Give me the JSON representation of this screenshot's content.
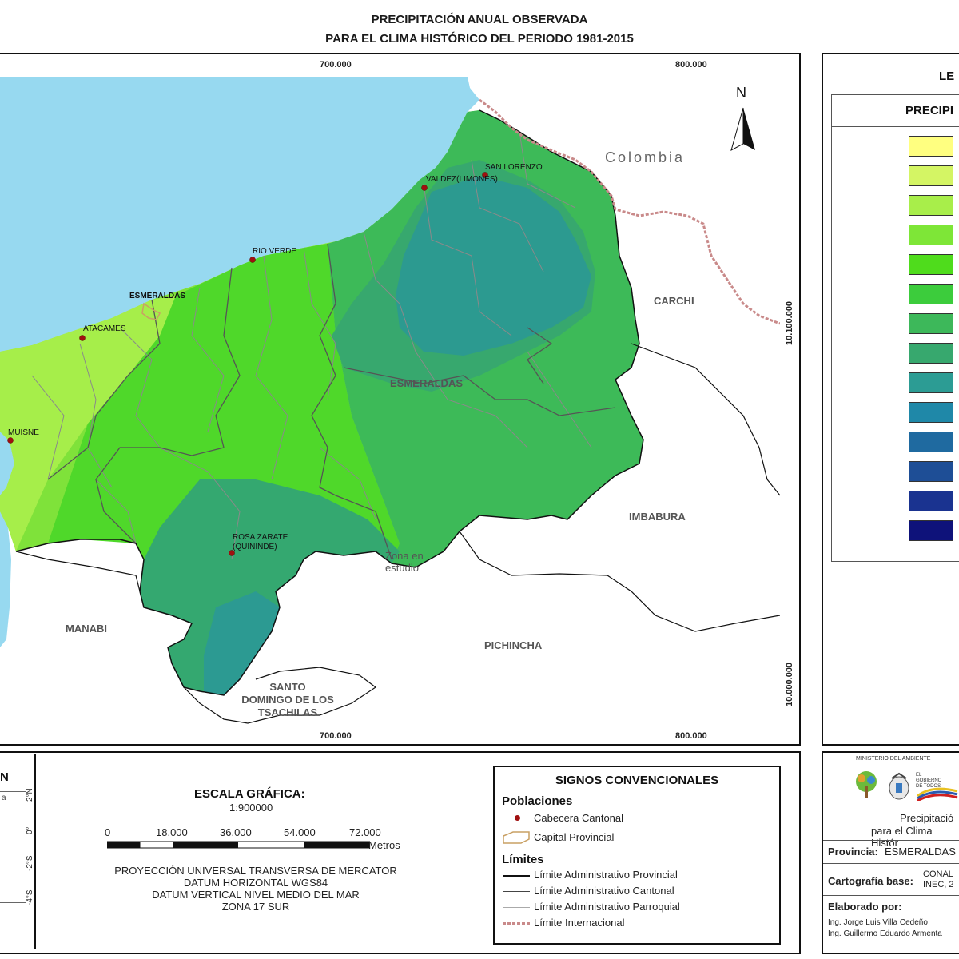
{
  "title": {
    "line1": "PRECIPITACIÓN ANUAL OBSERVADA",
    "line2": "PARA EL CLIMA HISTÓRICO DEL PERIODO 1981-2015"
  },
  "map": {
    "grid_x_labels": [
      "700.000",
      "800.000"
    ],
    "grid_y_labels": [
      "10.100.000",
      "10.000.000"
    ],
    "north_label": "N",
    "country_label": "Colombia",
    "province_labels": [
      "CARCHI",
      "IMBABURA",
      "PICHINCHA",
      "MANABI",
      "ESMERALDAS"
    ],
    "santo_domingo_label": [
      "SANTO",
      "DOMINGO DE LOS",
      "TSACHILAS"
    ],
    "zona_label": [
      "Zona en",
      "estudio"
    ],
    "capital_label": "ESMERALDAS",
    "towns": [
      "SAN LORENZO",
      "VALDEZ(LIMONES)",
      "RIO VERDE",
      "ATACAMES",
      "MUISNE",
      "ROSA ZARATE",
      "(QUININDE)"
    ],
    "colors": {
      "sea": "#97d9f0",
      "land_outside": "#ffffff",
      "boundary_parish": "#8a8a8a",
      "boundary_international": "#c98a8a"
    }
  },
  "legend": {
    "title": "LE",
    "subtitle": "PRECIPI",
    "swatch_colors": [
      "#ffff80",
      "#d4f564",
      "#a8ee4a",
      "#7ee637",
      "#4fdc1c",
      "#3ccc3c",
      "#3db85a",
      "#37a86e",
      "#2c9c94",
      "#1f88a8",
      "#1f6aa0",
      "#1e4e96",
      "#1a3390",
      "#0e127a"
    ]
  },
  "ubicacion": {
    "title": "N",
    "lat_labels": [
      "2°N",
      "0°",
      "-2°S",
      "-4°S"
    ],
    "country_fragment": "a"
  },
  "scale": {
    "title": "ESCALA GRÁFICA:",
    "ratio": "1:900000",
    "ticks": [
      "0",
      "18.000",
      "36.000",
      "54.000",
      "72.000"
    ],
    "unit": "Metros",
    "projection_lines": [
      "PROYECCIÓN UNIVERSAL TRANSVERSA DE MERCATOR",
      "DATUM HORIZONTAL WGS84",
      "DATUM VERTICAL NIVEL MEDIO DEL MAR",
      "ZONA 17 SUR"
    ]
  },
  "signos": {
    "title": "SIGNOS CONVENCIONALES",
    "poblaciones_heading": "Poblaciones",
    "cabecera": "Cabecera Cantonal",
    "capital": "Capital Provincial",
    "limites_heading": "Límites",
    "limites": [
      "Límite Administrativo Provincial",
      "Límite Administrativo Cantonal",
      "Límite Administrativo Parroquial",
      "Límite Internacional"
    ]
  },
  "info": {
    "ministry": "MINISTERIO DEL AMBIENTE",
    "gov_text": [
      "EL",
      "GOBIERNO",
      "DE TODOS"
    ],
    "desc_line1": "Precipitació",
    "desc_line2": "para el Clima Histór",
    "provincia_label": "Provincia:",
    "provincia_value": "ESMERALDAS",
    "cartografia_label": "Cartografía base:",
    "cartografia_value1": "CONAL",
    "cartografia_value2": "INEC, 2",
    "elaborado_label": "Elaborado por:",
    "authors": [
      "Ing. Jorge Luis Villa Cedeño",
      "Ing. Guillermo Eduardo Armenta"
    ]
  }
}
